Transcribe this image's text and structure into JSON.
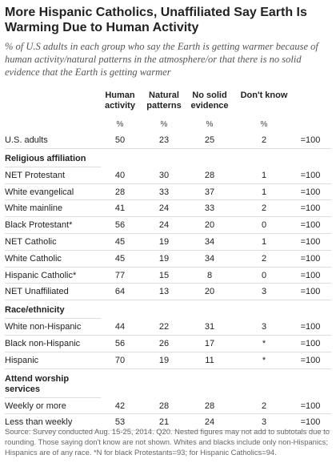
{
  "header": {
    "title": "More Hispanic Catholics, Unaffiliated Say Earth Is Warming Due to Human Activity",
    "subtitle": "% of U.S adults in each group who say the Earth is getting warmer because of human activity/natural patterns in the atmosphere/or that there is no solid evidence that the Earth is getting warmer"
  },
  "table": {
    "columns": [
      "Human activity",
      "Natural patterns",
      "No solid evidence",
      "Don't know"
    ],
    "units": [
      "%",
      "%",
      "%",
      "%"
    ],
    "sections": [
      {
        "rows": [
          {
            "label": "U.S. adults",
            "values": [
              50,
              23,
              25,
              2
            ],
            "total": "=100"
          }
        ]
      },
      {
        "title": "Religious affiliation",
        "rows": [
          {
            "label": "NET Protestant",
            "values": [
              40,
              30,
              28,
              1
            ],
            "total": "=100"
          },
          {
            "label": "White evangelical",
            "values": [
              28,
              33,
              37,
              1
            ],
            "total": "=100"
          },
          {
            "label": "White mainline",
            "values": [
              41,
              24,
              33,
              2
            ],
            "total": "=100"
          },
          {
            "label": "Black Protestant*",
            "values": [
              56,
              24,
              20,
              0
            ],
            "total": "=100"
          },
          {
            "label": "NET Catholic",
            "values": [
              45,
              19,
              34,
              1
            ],
            "total": "=100"
          },
          {
            "label": "White Catholic",
            "values": [
              45,
              19,
              34,
              2
            ],
            "total": "=100"
          },
          {
            "label": "Hispanic Catholic*",
            "values": [
              77,
              15,
              8,
              0
            ],
            "total": "=100"
          },
          {
            "label": "NET Unaffiliated",
            "values": [
              64,
              13,
              20,
              3
            ],
            "total": "=100"
          }
        ]
      },
      {
        "title": "Race/ethnicity",
        "rows": [
          {
            "label": "White non-Hispanic",
            "values": [
              44,
              22,
              31,
              3
            ],
            "total": "=100"
          },
          {
            "label": "Black non-Hispanic",
            "values": [
              56,
              26,
              17,
              "*"
            ],
            "total": "=100"
          },
          {
            "label": "Hispanic",
            "values": [
              70,
              19,
              11,
              "*"
            ],
            "total": "=100"
          }
        ]
      },
      {
        "title": "Attend worship services",
        "rows": [
          {
            "label": "Weekly or more",
            "values": [
              42,
              28,
              28,
              2
            ],
            "total": "=100"
          },
          {
            "label": "Less than weekly",
            "values": [
              53,
              21,
              24,
              3
            ],
            "total": "=100"
          }
        ]
      }
    ]
  },
  "footnote": "Source: Survey conducted Aug. 15-25, 2014. Q20. Nested figures may not add to subtotals due to rounding. Those saying don't know are not shown. Whites and blacks include only non-Hispanics; Hispanics are of any race. *N for black Protestants=93; for Hispanic Catholics=94."
}
